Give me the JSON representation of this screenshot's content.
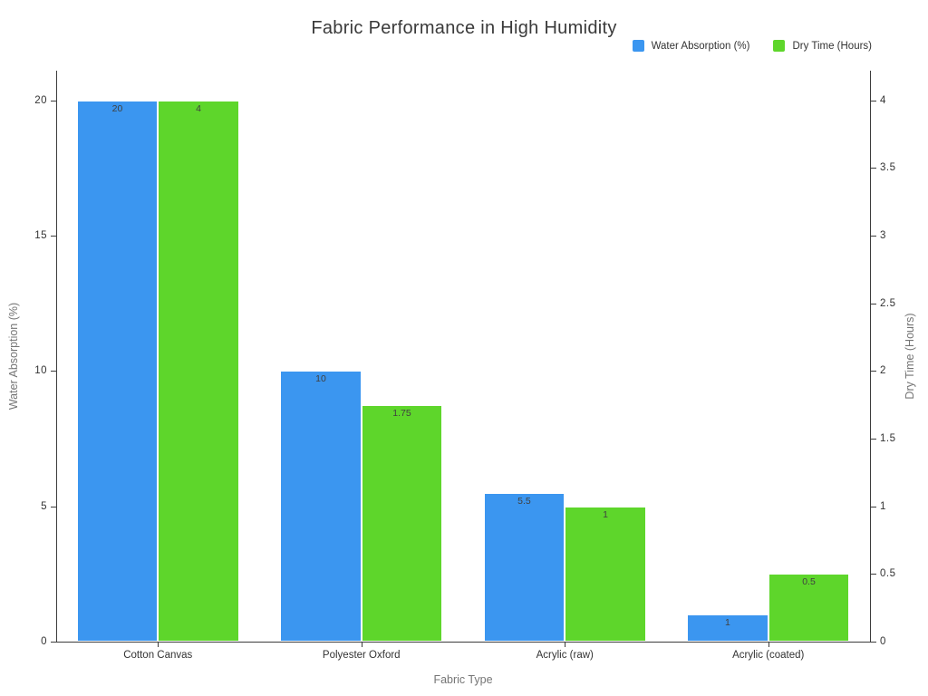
{
  "chart_data": {
    "type": "bar",
    "title": "Fabric Performance in High Humidity",
    "xlabel": "Fabric Type",
    "ylabel_left": "Water Absorption (%)",
    "ylabel_right": "Dry Time (Hours)",
    "categories": [
      "Cotton Canvas",
      "Polyester Oxford",
      "Acrylic (raw)",
      "Acrylic (coated)"
    ],
    "series": [
      {
        "name": "Water Absorption (%)",
        "axis": "left",
        "color": "#3B96F0",
        "values": [
          20,
          10,
          5.5,
          1
        ]
      },
      {
        "name": "Dry Time (Hours)",
        "axis": "right",
        "color": "#5ED62B",
        "values": [
          4,
          1.75,
          1,
          0.5
        ]
      }
    ],
    "ylim_left": [
      0,
      21.1
    ],
    "ylim_right": [
      0,
      4.22
    ],
    "yticks_left": [
      0,
      5,
      10,
      15,
      20
    ],
    "yticks_right": [
      0,
      0.5,
      1,
      1.5,
      2,
      2.5,
      3,
      3.5,
      4
    ],
    "legend_position": "top-right",
    "grid": false,
    "bar_value_labels": true
  },
  "colors": {
    "background": "#ffffff",
    "axis": "#3c3c3c",
    "tick_label": "#333333",
    "axis_title": "#757575",
    "value_label": "#404040",
    "title": "#3a3a3a"
  }
}
